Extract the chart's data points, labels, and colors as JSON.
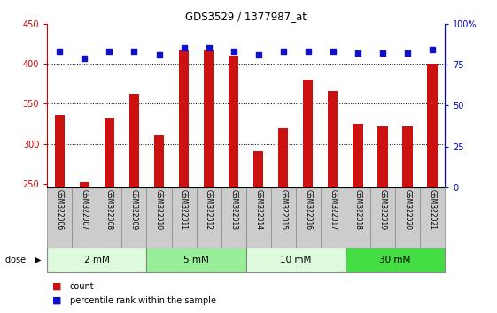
{
  "title": "GDS3529 / 1377987_at",
  "samples": [
    "GSM322006",
    "GSM322007",
    "GSM322008",
    "GSM322009",
    "GSM322010",
    "GSM322011",
    "GSM322012",
    "GSM322013",
    "GSM322014",
    "GSM322015",
    "GSM322016",
    "GSM322017",
    "GSM322018",
    "GSM322019",
    "GSM322020",
    "GSM322021"
  ],
  "counts": [
    336,
    252,
    332,
    362,
    310,
    418,
    418,
    410,
    291,
    319,
    380,
    366,
    325,
    322,
    322,
    400
  ],
  "percentile_ranks": [
    83,
    79,
    83,
    83,
    81,
    85,
    85,
    83,
    81,
    83,
    83,
    83,
    82,
    82,
    82,
    84
  ],
  "ylim_left": [
    245,
    450
  ],
  "ylim_right": [
    0,
    100
  ],
  "yticks_left": [
    250,
    300,
    350,
    400,
    450
  ],
  "yticks_right": [
    0,
    25,
    50,
    75,
    100
  ],
  "bar_color": "#cc1111",
  "dot_color": "#1111cc",
  "dose_groups": [
    {
      "label": "2 mM",
      "start": 0,
      "end": 3,
      "color": "#ddfadd"
    },
    {
      "label": "5 mM",
      "start": 4,
      "end": 7,
      "color": "#99ee99"
    },
    {
      "label": "10 mM",
      "start": 8,
      "end": 11,
      "color": "#ddfadd"
    },
    {
      "label": "30 mM",
      "start": 12,
      "end": 15,
      "color": "#44dd44"
    }
  ],
  "dose_label": "dose",
  "legend_count": "count",
  "legend_pct": "percentile rank within the sample",
  "xlabels_bg": "#cccccc",
  "bar_width": 0.4
}
